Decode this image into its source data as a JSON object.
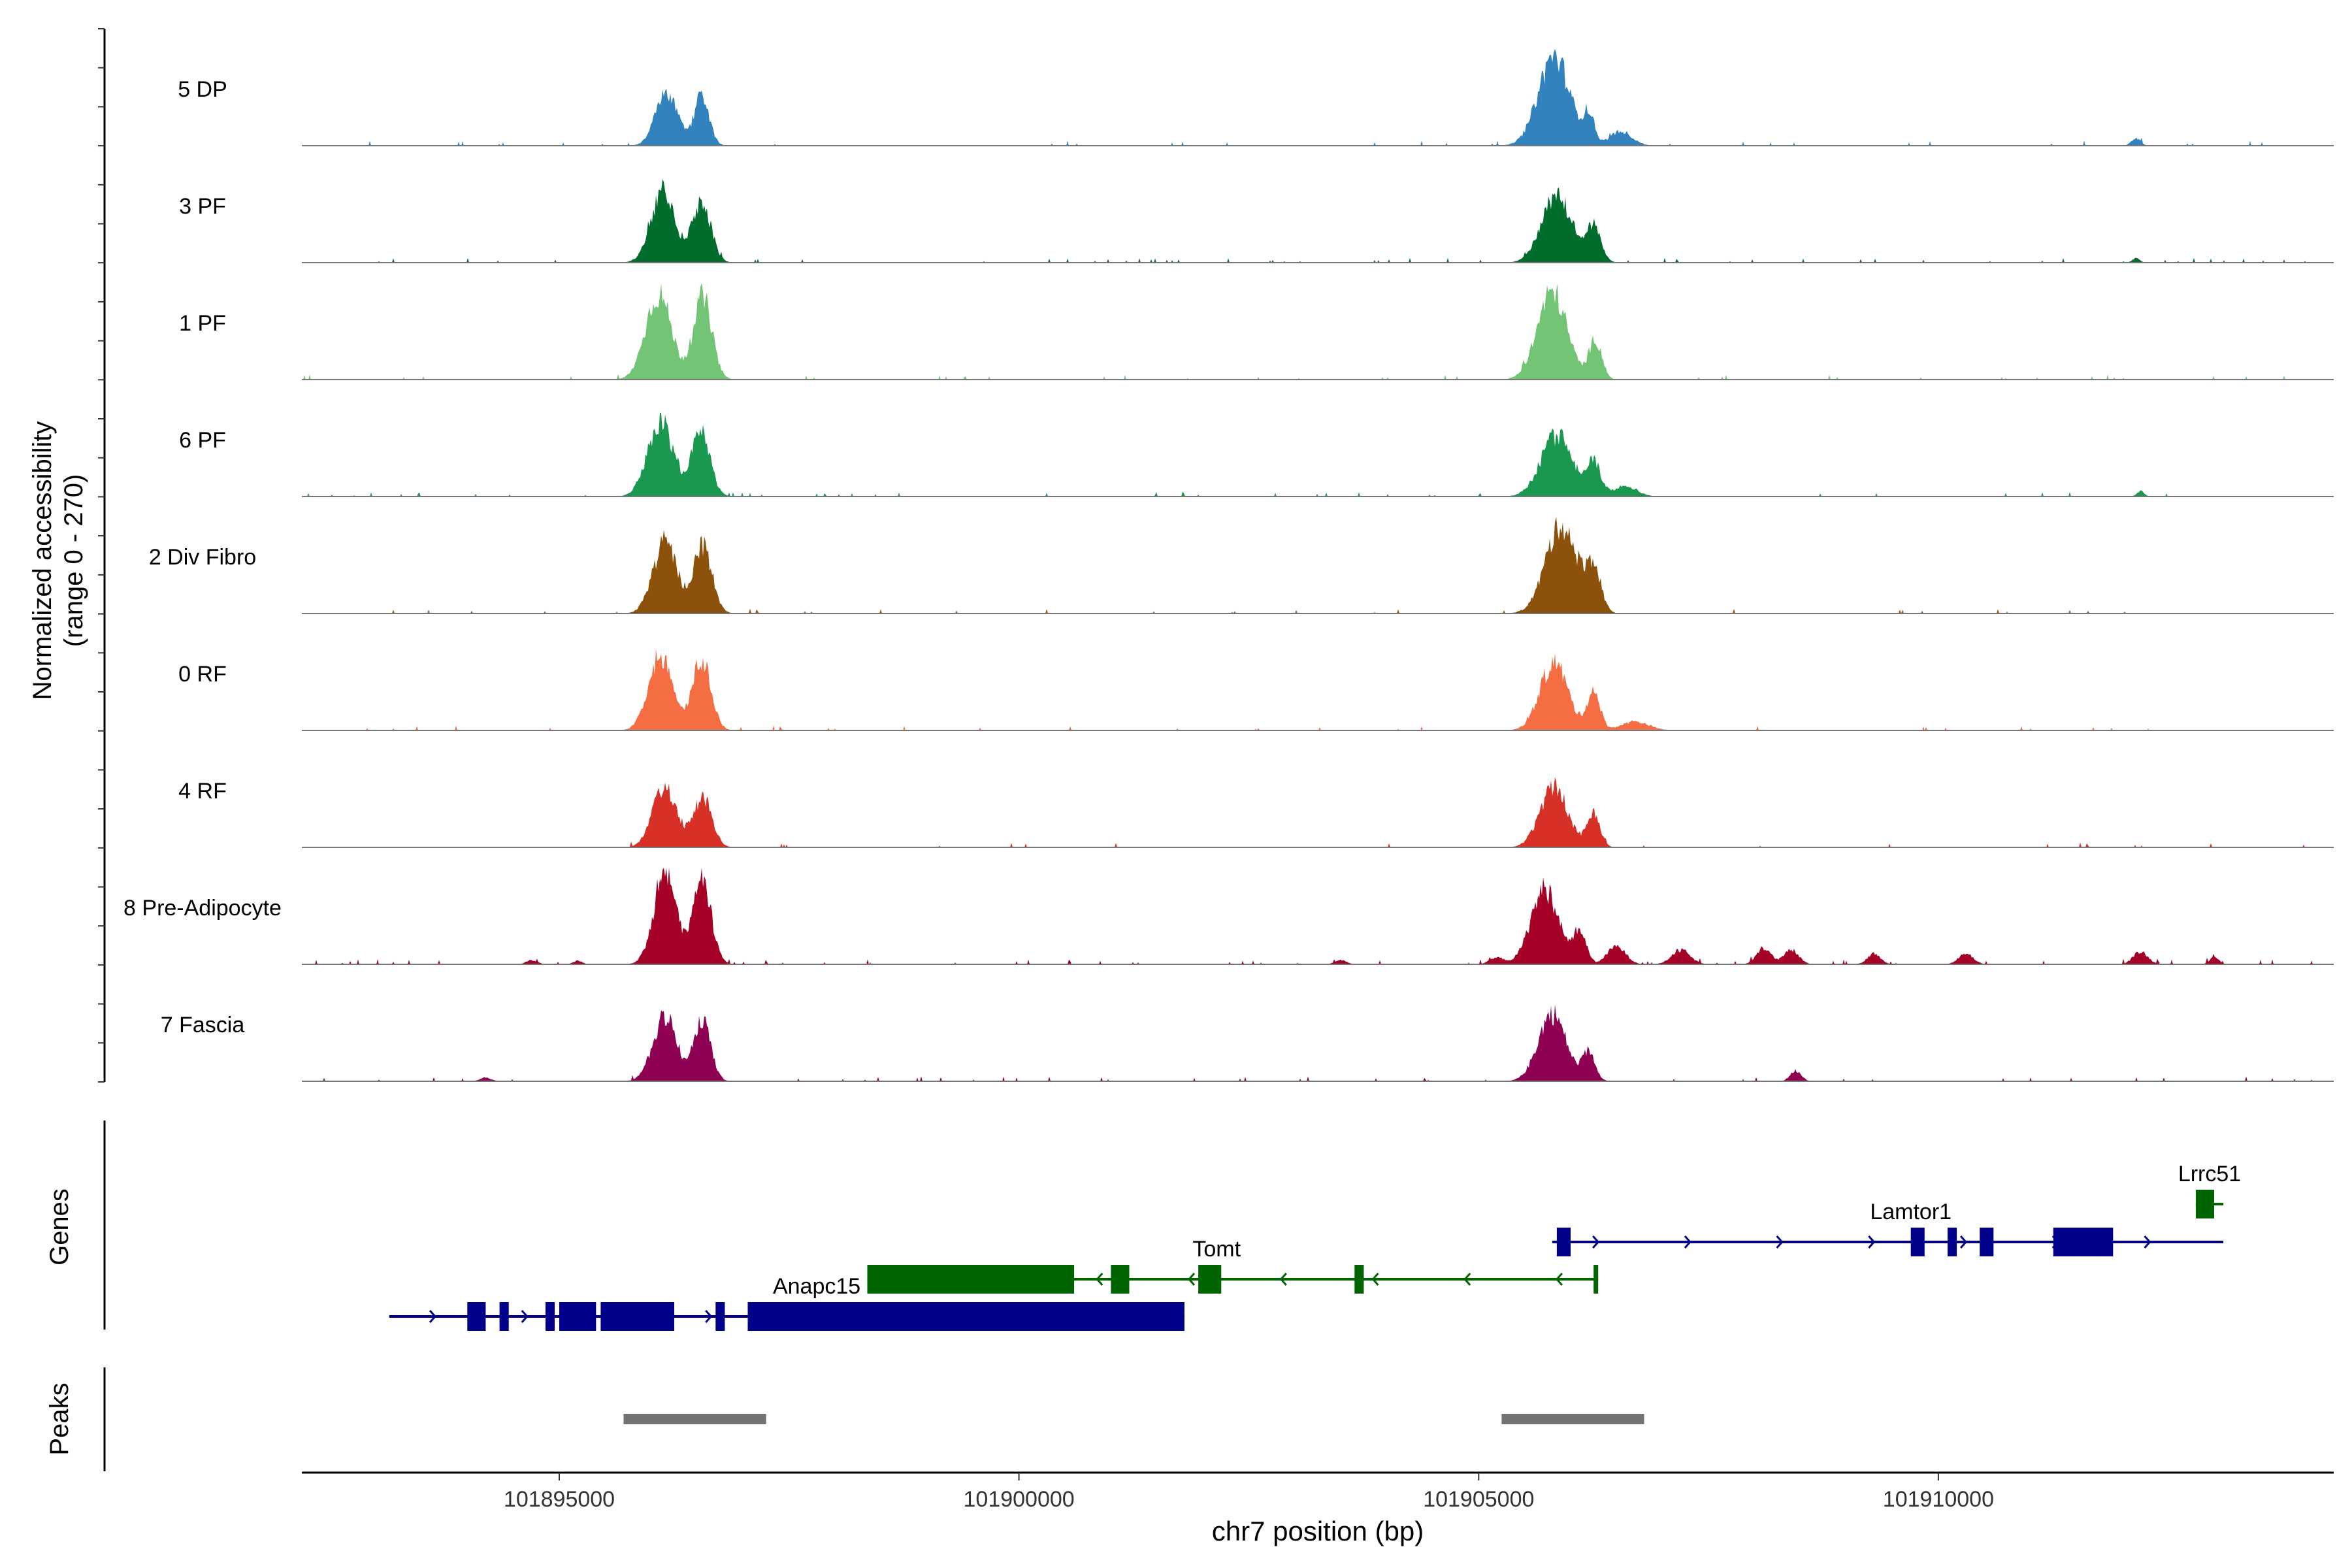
{
  "chart_data": {
    "type": "area",
    "title": "",
    "ylabel_line1": "Normalized accessibility",
    "ylabel_line2": "(range 0 - 270)",
    "y_range": [
      0,
      270
    ],
    "xlabel": "chr7 position (bp)",
    "xlim": [
      101892200,
      101914300
    ],
    "x_ticks": [
      {
        "value": 101895000,
        "label": "101895000"
      },
      {
        "value": 101900000,
        "label": "101900000"
      },
      {
        "value": 101905000,
        "label": "101905000"
      },
      {
        "value": 101910000,
        "label": "101910000"
      }
    ],
    "tracks": [
      {
        "name": "5 DP",
        "color": "#3182bd",
        "peaks": [
          [
            101896170,
            150,
            120
          ],
          [
            101896550,
            140,
            80
          ],
          [
            101905820,
            250,
            170
          ],
          [
            101906200,
            80,
            60
          ],
          [
            101906550,
            40,
            120
          ],
          [
            101912150,
            20,
            50
          ]
        ],
        "noise": 0.018
      },
      {
        "name": "3 PF",
        "color": "#006d2c",
        "peaks": [
          [
            101896130,
            200,
            130
          ],
          [
            101896550,
            170,
            100
          ],
          [
            101905850,
            190,
            160
          ],
          [
            101906250,
            100,
            80
          ],
          [
            101912150,
            12,
            40
          ]
        ],
        "noise": 0.035
      },
      {
        "name": "1 PF",
        "color": "#74c476",
        "peaks": [
          [
            101896080,
            240,
            140
          ],
          [
            101896560,
            230,
            100
          ],
          [
            101905800,
            245,
            160
          ],
          [
            101906270,
            110,
            70
          ]
        ],
        "noise": 0.025
      },
      {
        "name": "6 PF",
        "color": "#1a9850",
        "peaks": [
          [
            101896100,
            210,
            140
          ],
          [
            101896540,
            180,
            100
          ],
          [
            101905850,
            170,
            170
          ],
          [
            101906250,
            90,
            80
          ],
          [
            101906600,
            30,
            120
          ],
          [
            101912200,
            15,
            40
          ]
        ],
        "noise": 0.03
      },
      {
        "name": "2 Div Fibro",
        "color": "#8c510a",
        "peaks": [
          [
            101896150,
            200,
            130
          ],
          [
            101896560,
            190,
            100
          ],
          [
            101905900,
            250,
            170
          ],
          [
            101906250,
            120,
            80
          ]
        ],
        "noise": 0.02
      },
      {
        "name": "0 RF",
        "color": "#f46d43",
        "peaks": [
          [
            101896100,
            210,
            130
          ],
          [
            101896550,
            200,
            100
          ],
          [
            101905820,
            190,
            150
          ],
          [
            101906250,
            110,
            70
          ],
          [
            101906700,
            25,
            150
          ]
        ],
        "noise": 0.02
      },
      {
        "name": "4 RF",
        "color": "#d73027",
        "peaks": [
          [
            101896150,
            170,
            130
          ],
          [
            101896560,
            140,
            100
          ],
          [
            101905820,
            170,
            150
          ],
          [
            101906250,
            95,
            70
          ]
        ],
        "noise": 0.018
      },
      {
        "name": "8 Pre-Adipocyte",
        "color": "#a50026",
        "peaks": [
          [
            101896150,
            260,
            120
          ],
          [
            101896550,
            240,
            100
          ],
          [
            101905720,
            210,
            150
          ],
          [
            101906100,
            90,
            70
          ],
          [
            101906500,
            50,
            100
          ],
          [
            101907200,
            40,
            100
          ],
          [
            101908100,
            45,
            80
          ],
          [
            101908400,
            40,
            80
          ],
          [
            101909300,
            30,
            70
          ],
          [
            101910300,
            30,
            80
          ],
          [
            101912200,
            35,
            80
          ],
          [
            101913000,
            20,
            50
          ],
          [
            101894700,
            12,
            60
          ],
          [
            101895200,
            10,
            50
          ],
          [
            101903500,
            12,
            60
          ],
          [
            101905200,
            18,
            80
          ]
        ],
        "noise": 0.045
      },
      {
        "name": "7 Fascia",
        "color": "#8e0152",
        "peaks": [
          [
            101896150,
            180,
            130
          ],
          [
            101896560,
            170,
            90
          ],
          [
            101905800,
            190,
            150
          ],
          [
            101906200,
            80,
            70
          ],
          [
            101908450,
            30,
            60
          ],
          [
            101894200,
            10,
            60
          ]
        ],
        "noise": 0.035
      }
    ],
    "genes": [
      {
        "name": "Anapc15",
        "strand": "+",
        "color": "#00008b",
        "start": 101893150,
        "end": 101901800,
        "exons": [
          [
            101894000,
            101894200
          ],
          [
            101894350,
            101894450
          ],
          [
            101894850,
            101894950
          ],
          [
            101895000,
            101895400
          ],
          [
            101895450,
            101896250
          ],
          [
            101896700,
            101896800
          ],
          [
            101897050,
            101901800
          ]
        ],
        "row": 3,
        "label_x": 101897800
      },
      {
        "name": "Tomt",
        "strand": "-",
        "color": "#006400",
        "start": 101898350,
        "end": 101906300,
        "exons": [
          [
            101898350,
            101900600
          ],
          [
            101901000,
            101901200
          ],
          [
            101901950,
            101902200
          ],
          [
            101903650,
            101903750
          ],
          [
            101906250,
            101906300
          ]
        ],
        "row": 2,
        "label_x": 101902150
      },
      {
        "name": "Lamtor1",
        "strand": "+",
        "color": "#00008b",
        "start": 101905800,
        "end": 101913100,
        "exons": [
          [
            101905850,
            101906000
          ],
          [
            101909700,
            101909850
          ],
          [
            101910100,
            101910200
          ],
          [
            101910450,
            101910600
          ],
          [
            101911250,
            101911900
          ]
        ],
        "row": 1,
        "label_x": 101909700
      },
      {
        "name": "Lrrc51",
        "strand": "+",
        "color": "#006400",
        "start": 101912800,
        "end": 101913100,
        "exons": [
          [
            101912800,
            101913000
          ]
        ],
        "row": 0,
        "label_x": 101912950
      }
    ],
    "peak_regions": [
      [
        101895700,
        101897250
      ],
      [
        101905250,
        101906800
      ]
    ],
    "panel_labels": {
      "genes": "Genes",
      "peaks": "Peaks"
    }
  }
}
